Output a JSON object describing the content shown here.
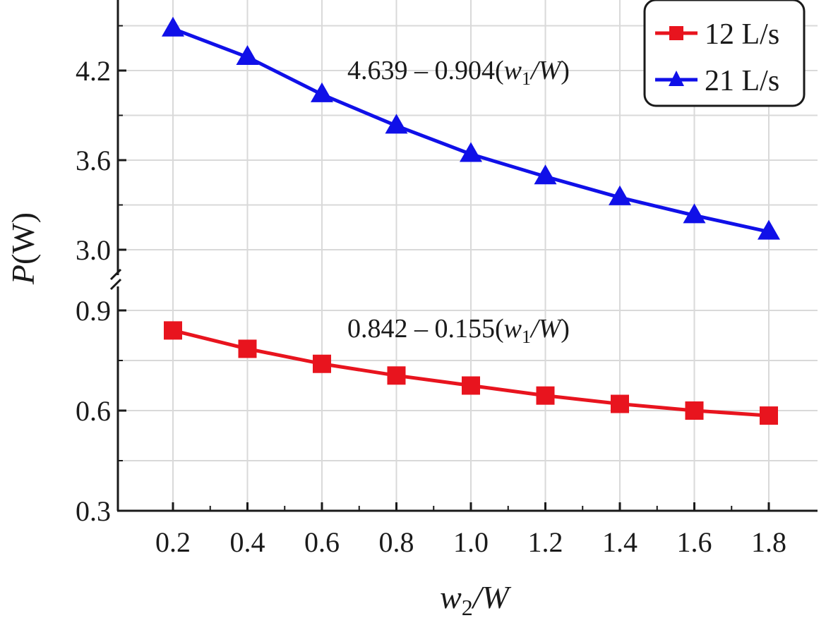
{
  "chart_data": {
    "type": "line",
    "x": [
      0.2,
      0.4,
      0.6,
      0.8,
      1.0,
      1.2,
      1.4,
      1.6,
      1.8
    ],
    "x_tick_labels": [
      "0.2",
      "0.4",
      "0.6",
      "0.8",
      "1.0",
      "1.2",
      "1.4",
      "1.6",
      "1.8"
    ],
    "xlabel": {
      "base": "w",
      "sub": "2",
      "rest": "/W"
    },
    "ylabel": {
      "italic": "P",
      "rest": "(W)"
    },
    "y_axis_broken": true,
    "y_upper_ticks": [
      {
        "value": 3.0,
        "label": "3.0"
      },
      {
        "value": 3.6,
        "label": "3.6"
      },
      {
        "value": 4.2,
        "label": "4.2"
      }
    ],
    "y_lower_ticks": [
      {
        "value": 0.3,
        "label": "0.3"
      },
      {
        "value": 0.6,
        "label": "0.6"
      },
      {
        "value": 0.9,
        "label": "0.9"
      }
    ],
    "ylim_upper": [
      2.85,
      4.5
    ],
    "ylim_lower": [
      0.3,
      0.95
    ],
    "grid": true,
    "legend_position": "top-right",
    "series": [
      {
        "name": "12 L/s",
        "color": "#e8141e",
        "marker": "square",
        "segment": "lower",
        "values": [
          0.84,
          0.785,
          0.74,
          0.705,
          0.675,
          0.645,
          0.62,
          0.6,
          0.585
        ]
      },
      {
        "name": "21 L/s",
        "color": "#1010e8",
        "marker": "triangle",
        "segment": "upper",
        "values": [
          4.48,
          4.29,
          4.04,
          3.83,
          3.64,
          3.49,
          3.35,
          3.23,
          3.12
        ]
      }
    ],
    "annotations": [
      {
        "id": "upper",
        "prefix": "4.639 – 0.904(",
        "base": "w",
        "sub": "1",
        "rest": "/W",
        "close": ")"
      },
      {
        "id": "lower",
        "prefix": "0.842 – 0.155(",
        "base": "w",
        "sub": "1",
        "rest": "/W",
        "close": ")"
      }
    ]
  }
}
